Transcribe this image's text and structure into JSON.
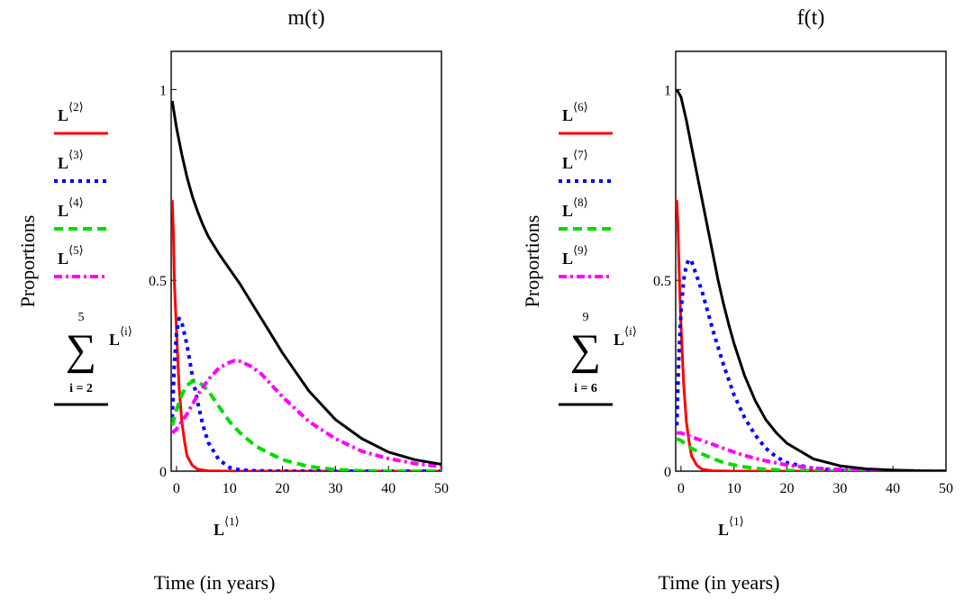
{
  "chart_data": [
    {
      "type": "line",
      "title": "m(t)",
      "xlabel": "Time (in years)",
      "ylabel": "Proportions",
      "x_var_label": {
        "base": "L",
        "sup": "⟨1⟩"
      },
      "legend_position": "left",
      "grid": false,
      "xlim": [
        -1,
        50
      ],
      "ylim": [
        0,
        1.1
      ],
      "x_ticks": [
        "0",
        "10",
        "20",
        "30",
        "40",
        "50"
      ],
      "y_ticks": [
        "0",
        "0.5",
        "1"
      ],
      "sum_label": {
        "top": "5",
        "bottom": "i = 2",
        "term": "L",
        "term_sup": "⟨i⟩"
      },
      "series": [
        {
          "name": "L",
          "sup": "⟨2⟩",
          "color": "#ff0000",
          "style": "solid",
          "points": [
            [
              -0.8,
              0.71
            ],
            [
              -0.6,
              0.63
            ],
            [
              -0.4,
              0.5
            ],
            [
              -0.2,
              0.43
            ],
            [
              0,
              0.37
            ],
            [
              0.5,
              0.22
            ],
            [
              1,
              0.13
            ],
            [
              1.5,
              0.08
            ],
            [
              2,
              0.04
            ],
            [
              3,
              0.015
            ],
            [
              4,
              0.005
            ],
            [
              6,
              0.001
            ],
            [
              10,
              0
            ],
            [
              50,
              0
            ]
          ]
        },
        {
          "name": "L",
          "sup": "⟨3⟩",
          "color": "#0000ff",
          "style": "dotted",
          "points": [
            [
              -0.8,
              0.14
            ],
            [
              -0.4,
              0.28
            ],
            [
              0,
              0.36
            ],
            [
              0.5,
              0.4
            ],
            [
              1,
              0.39
            ],
            [
              2,
              0.33
            ],
            [
              3,
              0.25
            ],
            [
              4,
              0.18
            ],
            [
              5,
              0.12
            ],
            [
              6,
              0.075
            ],
            [
              8,
              0.03
            ],
            [
              10,
              0.01
            ],
            [
              12,
              0.003
            ],
            [
              15,
              0.001
            ],
            [
              20,
              0
            ],
            [
              50,
              0
            ]
          ]
        },
        {
          "name": "L",
          "sup": "⟨4⟩",
          "color": "#00dd00",
          "style": "dashed",
          "points": [
            [
              -0.8,
              0.12
            ],
            [
              0,
              0.16
            ],
            [
              1,
              0.2
            ],
            [
              2,
              0.225
            ],
            [
              3,
              0.235
            ],
            [
              4,
              0.235
            ],
            [
              5,
              0.225
            ],
            [
              6,
              0.21
            ],
            [
              8,
              0.17
            ],
            [
              10,
              0.13
            ],
            [
              12,
              0.1
            ],
            [
              15,
              0.065
            ],
            [
              20,
              0.03
            ],
            [
              25,
              0.012
            ],
            [
              30,
              0.004
            ],
            [
              35,
              0.001
            ],
            [
              40,
              0
            ],
            [
              50,
              0
            ]
          ]
        },
        {
          "name": "L",
          "sup": "⟨5⟩",
          "color": "#ff00ff",
          "style": "dashdot",
          "points": [
            [
              -0.8,
              0.1
            ],
            [
              0,
              0.11
            ],
            [
              2,
              0.15
            ],
            [
              4,
              0.2
            ],
            [
              6,
              0.24
            ],
            [
              8,
              0.27
            ],
            [
              10,
              0.285
            ],
            [
              11,
              0.29
            ],
            [
              12,
              0.288
            ],
            [
              14,
              0.275
            ],
            [
              16,
              0.255
            ],
            [
              18,
              0.225
            ],
            [
              20,
              0.195
            ],
            [
              25,
              0.13
            ],
            [
              30,
              0.085
            ],
            [
              35,
              0.052
            ],
            [
              40,
              0.033
            ],
            [
              45,
              0.02
            ],
            [
              50,
              0.012
            ]
          ]
        },
        {
          "name": "Σ L⟨i⟩, i = 2…5",
          "color": "#000000",
          "style": "solid",
          "points": [
            [
              -0.8,
              0.97
            ],
            [
              0,
              0.9
            ],
            [
              1,
              0.83
            ],
            [
              2,
              0.77
            ],
            [
              3,
              0.72
            ],
            [
              4,
              0.68
            ],
            [
              5,
              0.645
            ],
            [
              6,
              0.615
            ],
            [
              8,
              0.57
            ],
            [
              10,
              0.53
            ],
            [
              12,
              0.49
            ],
            [
              14,
              0.445
            ],
            [
              16,
              0.4
            ],
            [
              18,
              0.355
            ],
            [
              20,
              0.31
            ],
            [
              25,
              0.21
            ],
            [
              30,
              0.135
            ],
            [
              35,
              0.085
            ],
            [
              40,
              0.05
            ],
            [
              45,
              0.03
            ],
            [
              50,
              0.018
            ]
          ]
        }
      ]
    },
    {
      "type": "line",
      "title": "f(t)",
      "xlabel": "Time (in years)",
      "ylabel": "Proportions",
      "x_var_label": {
        "base": "L",
        "sup": "⟨1⟩"
      },
      "legend_position": "left",
      "grid": false,
      "xlim": [
        -1,
        50
      ],
      "ylim": [
        0,
        1.1
      ],
      "x_ticks": [
        "0",
        "10",
        "20",
        "30",
        "40",
        "50"
      ],
      "y_ticks": [
        "0",
        "0.5",
        "1"
      ],
      "sum_label": {
        "top": "9",
        "bottom": "i = 6",
        "term": "L",
        "term_sup": "⟨i⟩"
      },
      "series": [
        {
          "name": "L",
          "sup": "⟨6⟩",
          "color": "#ff0000",
          "style": "solid",
          "points": [
            [
              -0.8,
              0.71
            ],
            [
              -0.6,
              0.65
            ],
            [
              -0.3,
              0.5
            ],
            [
              0,
              0.38
            ],
            [
              0.5,
              0.23
            ],
            [
              1,
              0.13
            ],
            [
              1.5,
              0.08
            ],
            [
              2,
              0.04
            ],
            [
              3,
              0.015
            ],
            [
              4,
              0.005
            ],
            [
              6,
              0.001
            ],
            [
              10,
              0
            ],
            [
              50,
              0
            ]
          ]
        },
        {
          "name": "L",
          "sup": "⟨7⟩",
          "color": "#0000ff",
          "style": "dotted",
          "points": [
            [
              -0.8,
              0.12
            ],
            [
              -0.4,
              0.3
            ],
            [
              0,
              0.42
            ],
            [
              0.5,
              0.5
            ],
            [
              1,
              0.54
            ],
            [
              1.5,
              0.555
            ],
            [
              2,
              0.55
            ],
            [
              3,
              0.51
            ],
            [
              4,
              0.47
            ],
            [
              5,
              0.42
            ],
            [
              6,
              0.37
            ],
            [
              8,
              0.28
            ],
            [
              10,
              0.2
            ],
            [
              12,
              0.14
            ],
            [
              14,
              0.095
            ],
            [
              16,
              0.06
            ],
            [
              18,
              0.037
            ],
            [
              20,
              0.022
            ],
            [
              25,
              0.007
            ],
            [
              30,
              0.002
            ],
            [
              35,
              0.001
            ],
            [
              40,
              0
            ],
            [
              50,
              0
            ]
          ]
        },
        {
          "name": "L",
          "sup": "⟨8⟩",
          "color": "#00dd00",
          "style": "dashed",
          "points": [
            [
              -0.8,
              0.085
            ],
            [
              0,
              0.08
            ],
            [
              2,
              0.06
            ],
            [
              4,
              0.045
            ],
            [
              6,
              0.033
            ],
            [
              8,
              0.023
            ],
            [
              10,
              0.016
            ],
            [
              12,
              0.011
            ],
            [
              15,
              0.006
            ],
            [
              20,
              0.002
            ],
            [
              25,
              0.001
            ],
            [
              30,
              0
            ],
            [
              50,
              0
            ]
          ]
        },
        {
          "name": "L",
          "sup": "⟨9⟩",
          "color": "#ff00ff",
          "style": "dashdot",
          "points": [
            [
              -0.8,
              0.1
            ],
            [
              0,
              0.1
            ],
            [
              2,
              0.09
            ],
            [
              4,
              0.08
            ],
            [
              6,
              0.07
            ],
            [
              8,
              0.06
            ],
            [
              10,
              0.05
            ],
            [
              12,
              0.041
            ],
            [
              15,
              0.03
            ],
            [
              20,
              0.016
            ],
            [
              25,
              0.008
            ],
            [
              30,
              0.004
            ],
            [
              35,
              0.002
            ],
            [
              40,
              0.001
            ],
            [
              50,
              0
            ]
          ]
        },
        {
          "name": "Σ L⟨i⟩, i = 6…9",
          "color": "#000000",
          "style": "solid",
          "points": [
            [
              -0.8,
              1.0
            ],
            [
              0,
              0.98
            ],
            [
              1,
              0.92
            ],
            [
              2,
              0.85
            ],
            [
              3,
              0.78
            ],
            [
              4,
              0.71
            ],
            [
              5,
              0.64
            ],
            [
              6,
              0.57
            ],
            [
              7,
              0.5
            ],
            [
              8,
              0.44
            ],
            [
              9,
              0.385
            ],
            [
              10,
              0.335
            ],
            [
              12,
              0.25
            ],
            [
              14,
              0.185
            ],
            [
              16,
              0.135
            ],
            [
              18,
              0.1
            ],
            [
              20,
              0.073
            ],
            [
              25,
              0.032
            ],
            [
              30,
              0.014
            ],
            [
              35,
              0.006
            ],
            [
              40,
              0.003
            ],
            [
              45,
              0.001
            ],
            [
              50,
              0
            ]
          ]
        }
      ]
    }
  ]
}
